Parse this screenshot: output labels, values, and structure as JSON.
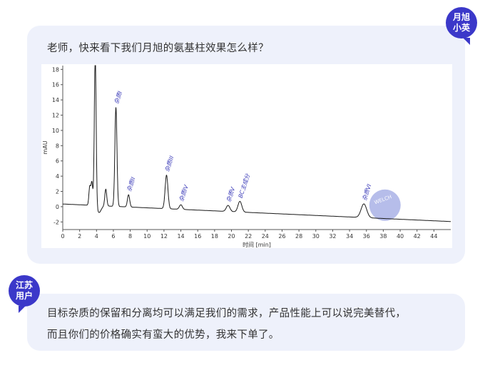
{
  "question_bubble": {
    "badge": [
      "月旭",
      "小英"
    ],
    "text": "老师，快来看下我们月旭的氨基柱效果怎么样？"
  },
  "answer_bubble": {
    "badge": [
      "江苏",
      "用户"
    ],
    "lines": [
      "目标杂质的保留和分离均可以满足我们的需求，产品性能上可以说完美替代，",
      "而且你们的价格确实有蛮大的优势，我来下单了。"
    ]
  },
  "colors": {
    "accent": "#3b38c9",
    "bubble": "#eef1fb",
    "trace": "#1a1a1a",
    "peak_label": "#3a3ab8"
  },
  "watermark": "WELCH",
  "chart_data": {
    "type": "line",
    "xlabel": "时间 [min]",
    "ylabel": "mAU",
    "xlim": [
      0,
      46
    ],
    "ylim": [
      -3,
      18.5
    ],
    "x_ticks": [
      0,
      2,
      4,
      6,
      8,
      10,
      12,
      14,
      16,
      18,
      20,
      22,
      24,
      26,
      28,
      30,
      32,
      34,
      36,
      38,
      40,
      42,
      44
    ],
    "y_ticks": [
      -2,
      0,
      2,
      4,
      6,
      8,
      10,
      12,
      14,
      16,
      18
    ],
    "peaks": [
      {
        "x": 3.2,
        "height": 2.4,
        "label": ""
      },
      {
        "x": 3.45,
        "height": 3.0,
        "label": ""
      },
      {
        "x": 3.85,
        "height": 20,
        "label": ""
      },
      {
        "x": 5.1,
        "height": 2.2,
        "label": ""
      },
      {
        "x": 6.3,
        "height": 13.0,
        "label": "杂质I"
      },
      {
        "x": 7.8,
        "height": 1.6,
        "label": "杂质II"
      },
      {
        "x": 12.3,
        "height": 4.4,
        "label": "杂质III"
      },
      {
        "x": 14.0,
        "height": 0.6,
        "label": "杂质IV"
      },
      {
        "x": 19.6,
        "height": 0.8,
        "label": "杂质V"
      },
      {
        "x": 21.0,
        "height": 1.4,
        "label": "BC主成分"
      },
      {
        "x": 35.7,
        "height": 1.8,
        "label": "杂质VI"
      }
    ]
  }
}
